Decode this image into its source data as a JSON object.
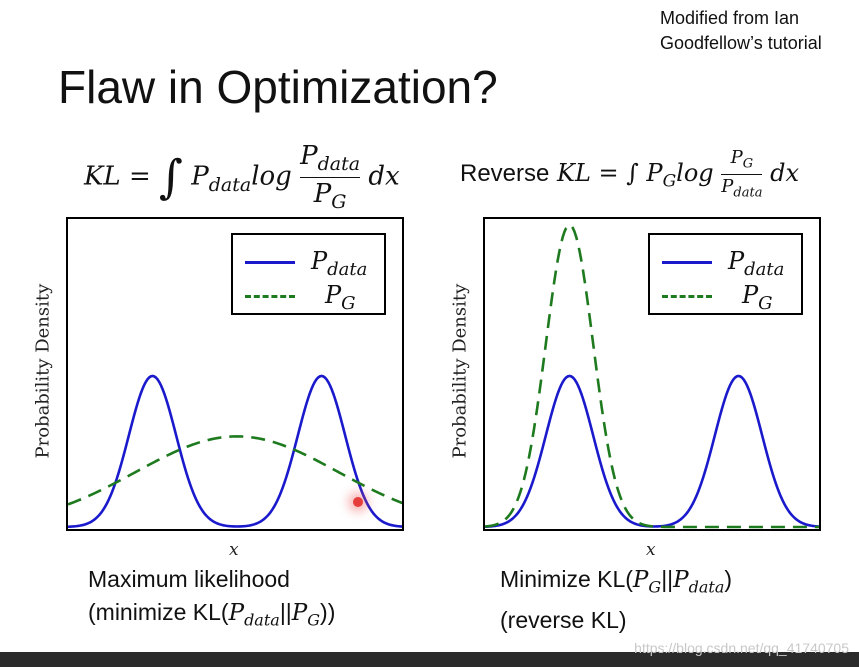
{
  "credit": [
    "Modified from Ian",
    "Goodfellow’s tutorial"
  ],
  "title": "Flaw in Optimization?",
  "left_formula": {
    "lhs": "KL = ",
    "integral": "∫",
    "p": "P",
    "p_sub": "data",
    "log": "log",
    "num": "P",
    "num_sub": "data",
    "den": "P",
    "den_sub": "G",
    "dx": "dx"
  },
  "right_formula": {
    "prefix": "Reverse",
    "lhs": "KL = ",
    "integral": "∫",
    "p": "P",
    "p_sub": "G",
    "log": "log",
    "num": "P",
    "num_sub": "G",
    "den": "P",
    "den_sub": "data",
    "dx": "dx"
  },
  "axis": {
    "ylabel": "Probability Density",
    "xlabel": "x"
  },
  "legend": {
    "pdata": "P",
    "pdata_sub": "data",
    "pg": "P",
    "pg_sub": "G"
  },
  "captions": {
    "left_line1": "Maximum likelihood",
    "left_line2_pre": "(minimize KL(",
    "left_line2_a": "P",
    "left_line2_a_sub": "data",
    "left_line2_sep": "||",
    "left_line2_b": "P",
    "left_line2_b_sub": "G",
    "left_line2_post": "))",
    "right_line1_pre": "Minimize KL(",
    "right_line1_a": "P",
    "right_line1_a_sub": "G",
    "right_line1_sep": "||",
    "right_line1_b": "P",
    "right_line1_b_sub": "data",
    "right_line1_post": ")",
    "right_line2": "(reverse KL)"
  },
  "watermark": "https://blog.csdn.net/qq_41740705",
  "colors": {
    "pdata": "#1a1acc",
    "pg": "#1e7a1e"
  },
  "chart_data": [
    {
      "type": "line",
      "xlim": [
        0,
        1
      ],
      "ylim": [
        0,
        1
      ],
      "series": [
        {
          "name": "P_data",
          "style": "solid",
          "color": "#1a1acc",
          "mixture": [
            {
              "mu": 0.25,
              "sigma": 0.07,
              "amp": 0.5
            },
            {
              "mu": 0.75,
              "sigma": 0.07,
              "amp": 0.5
            }
          ]
        },
        {
          "name": "P_G",
          "style": "dashed",
          "color": "#1e7a1e",
          "mixture": [
            {
              "mu": 0.5,
              "sigma": 0.3,
              "amp": 0.3
            }
          ]
        }
      ]
    },
    {
      "type": "line",
      "xlim": [
        0,
        1
      ],
      "ylim": [
        0,
        1
      ],
      "series": [
        {
          "name": "P_data",
          "style": "solid",
          "color": "#1a1acc",
          "mixture": [
            {
              "mu": 0.25,
              "sigma": 0.07,
              "amp": 0.5
            },
            {
              "mu": 0.75,
              "sigma": 0.07,
              "amp": 0.5
            }
          ]
        },
        {
          "name": "P_G",
          "style": "dashed",
          "color": "#1e7a1e",
          "mixture": [
            {
              "mu": 0.25,
              "sigma": 0.07,
              "amp": 1.0
            }
          ]
        }
      ]
    }
  ]
}
